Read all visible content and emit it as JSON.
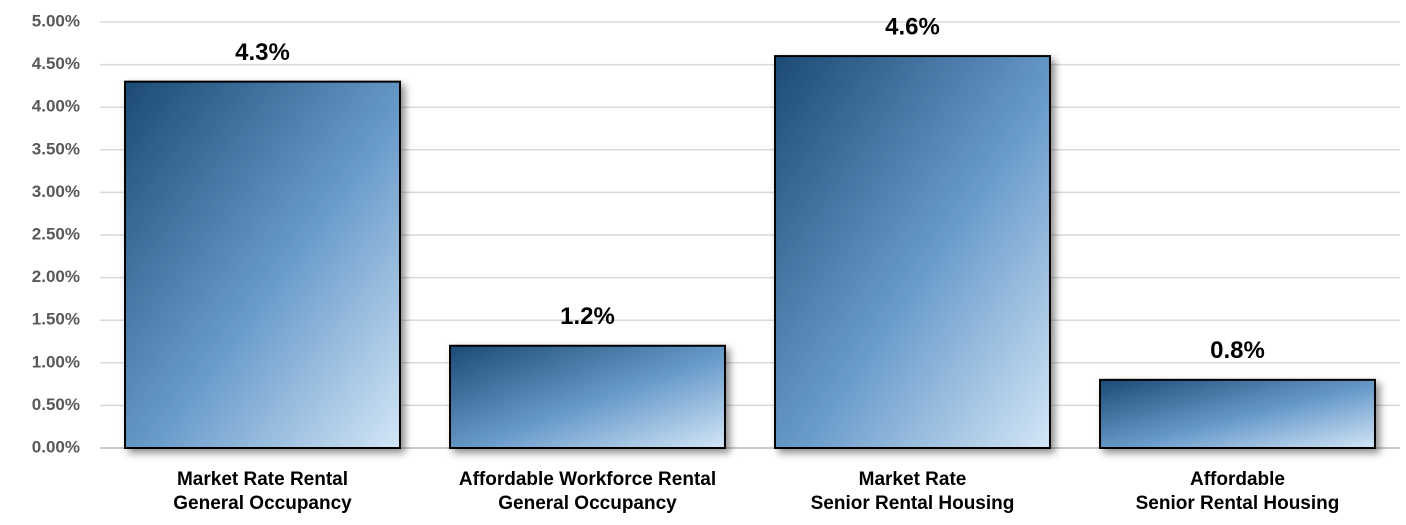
{
  "chart_data": {
    "type": "bar",
    "categories": [
      "Market Rate Rental\nGeneral Occupancy",
      "Affordable Workforce Rental\nGeneral Occupancy",
      "Market Rate\nSenior Rental Housing",
      "Affordable\nSenior Rental Housing"
    ],
    "values": [
      4.3,
      1.2,
      4.6,
      0.8
    ],
    "value_labels": [
      "4.3%",
      "1.2%",
      "4.6%",
      "0.8%"
    ],
    "ylim": [
      0,
      5
    ],
    "yticks": [
      {
        "value": 0,
        "label": "0.00%"
      },
      {
        "value": 0.5,
        "label": "0.50%"
      },
      {
        "value": 1,
        "label": "1.00%"
      },
      {
        "value": 1.5,
        "label": "1.50%"
      },
      {
        "value": 2,
        "label": "2.00%"
      },
      {
        "value": 2.5,
        "label": "2.50%"
      },
      {
        "value": 3,
        "label": "3.00%"
      },
      {
        "value": 3.5,
        "label": "3.50%"
      },
      {
        "value": 4,
        "label": "4.00%"
      },
      {
        "value": 4.5,
        "label": "4.50%"
      },
      {
        "value": 5,
        "label": "5.00%"
      }
    ],
    "grid": true
  }
}
